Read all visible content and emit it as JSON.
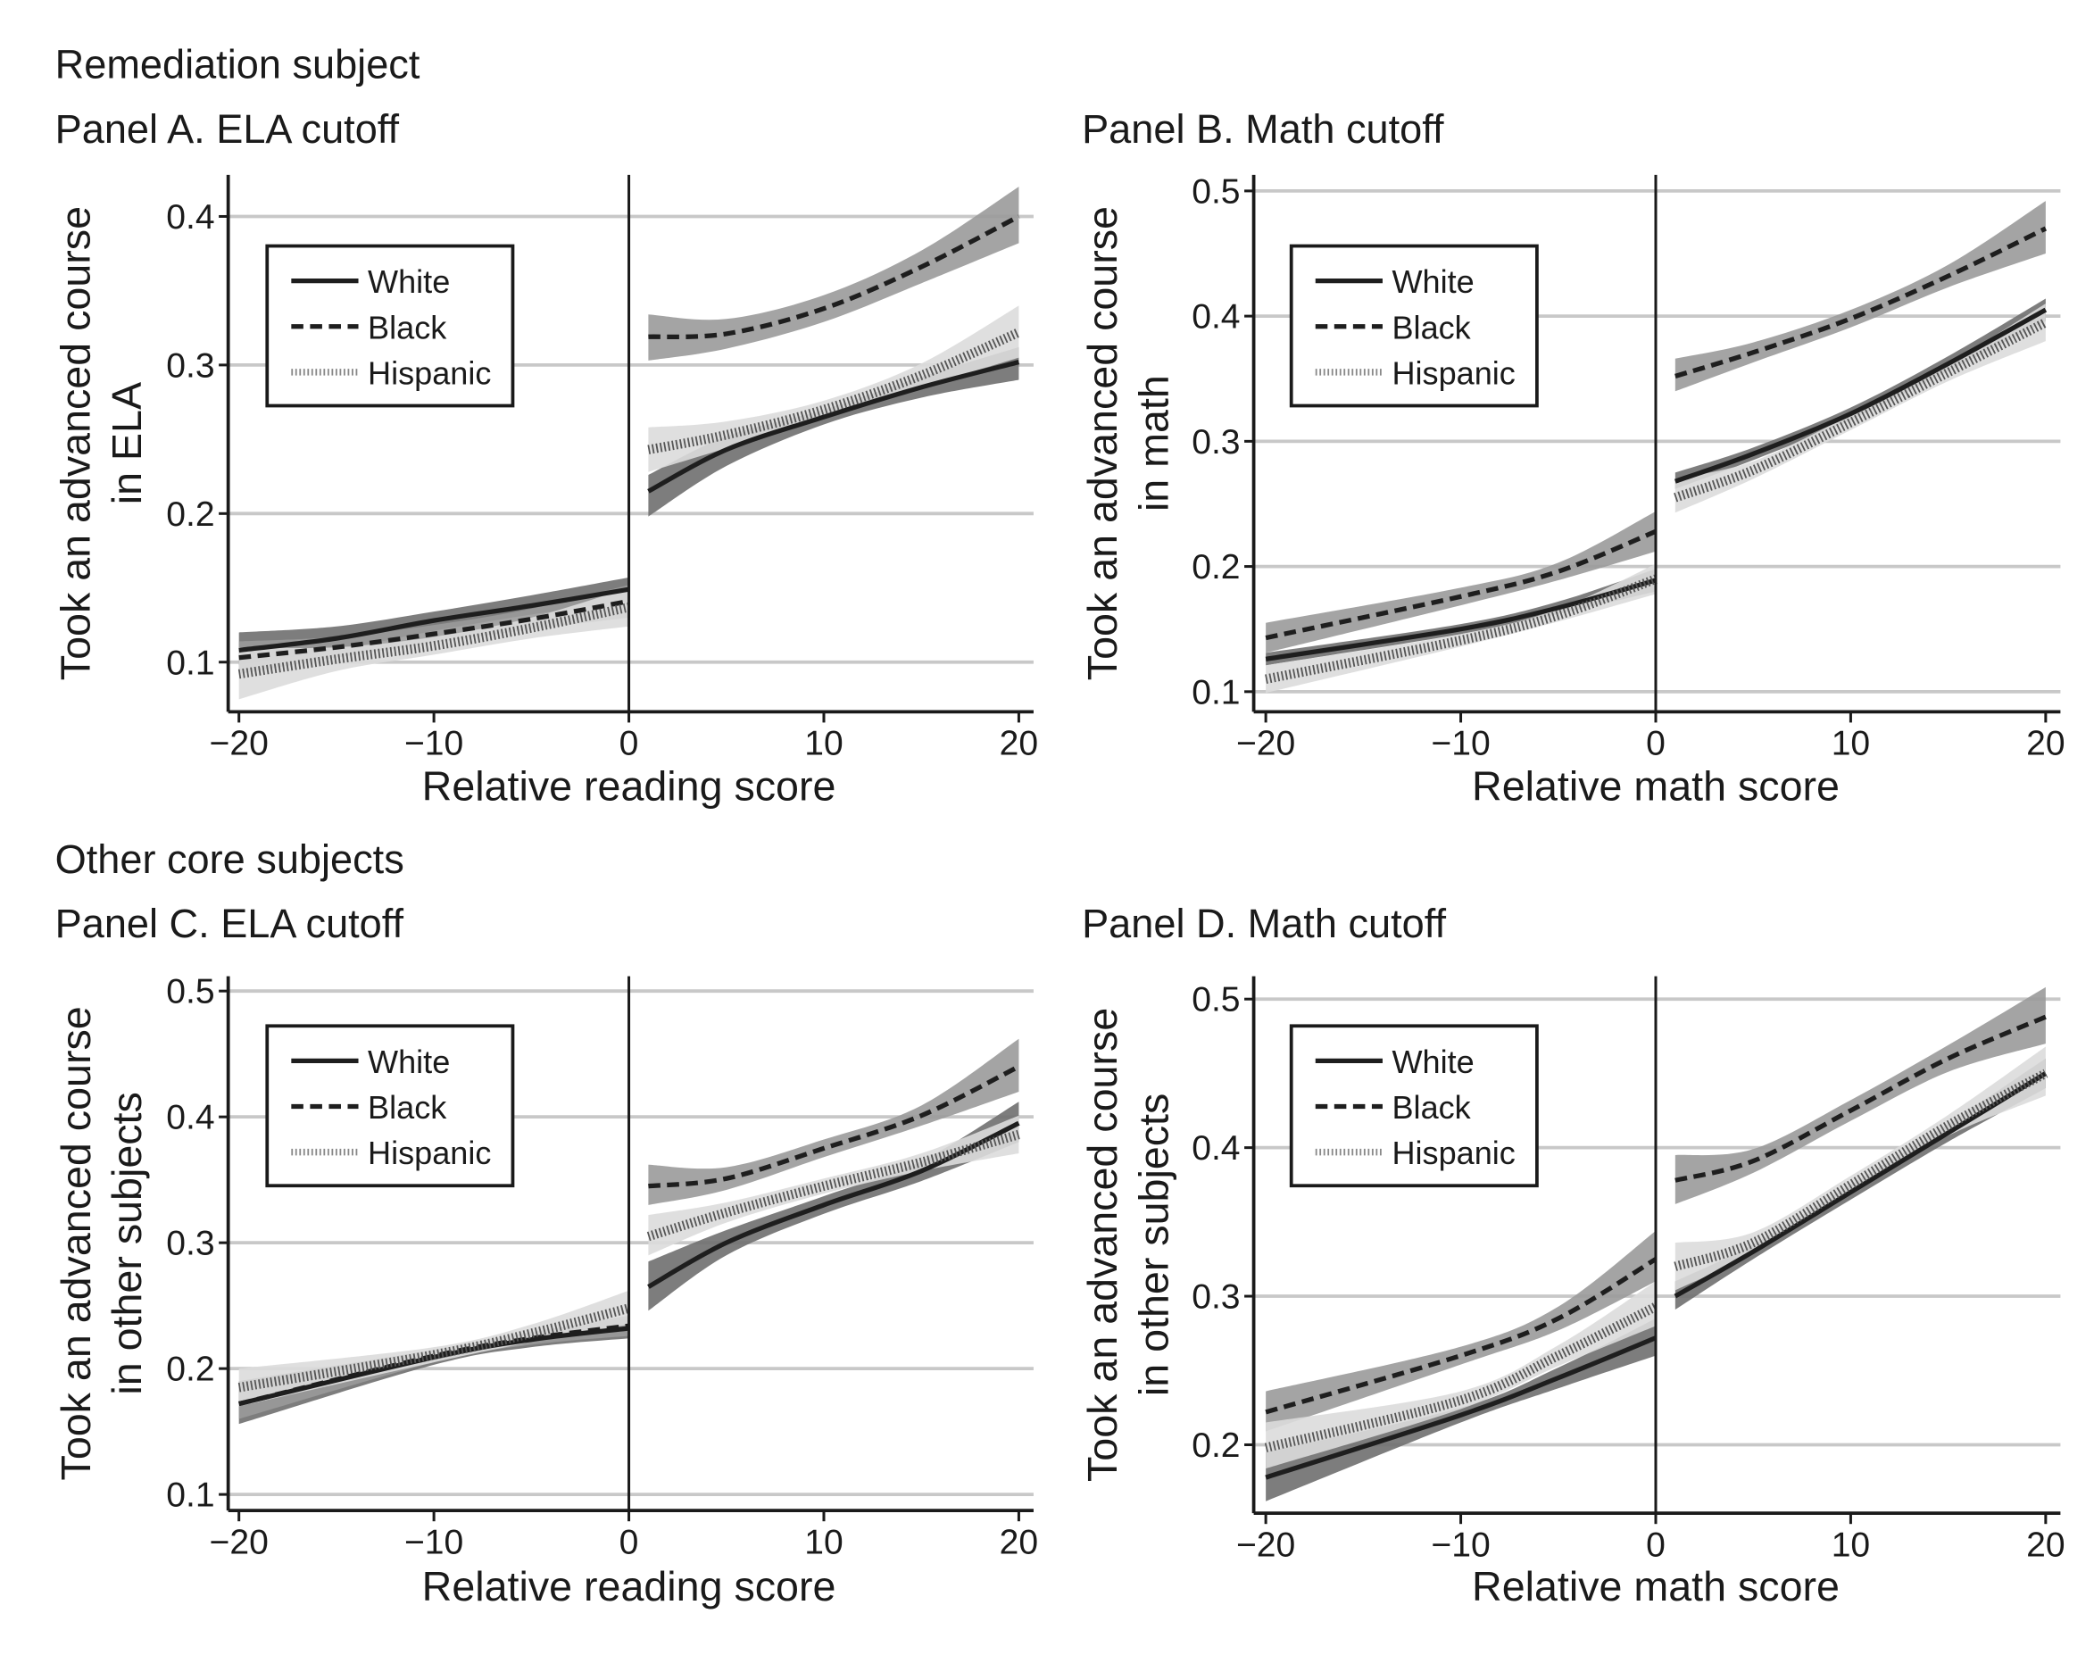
{
  "chart_data": [
    {
      "type": "line",
      "group_title": "Remediation subject",
      "title": "Panel A. ELA cutoff",
      "xlabel": "Relative reading score",
      "ylabel": [
        "Took an advanced course",
        "in ELA"
      ],
      "xlim": [
        -20,
        20
      ],
      "ylim": [
        0.07,
        0.43
      ],
      "xticks": [
        -20,
        -10,
        0,
        10,
        20
      ],
      "xtick_labels": [
        "−20",
        "−10",
        "0",
        "10",
        "20"
      ],
      "yticks": [
        0.1,
        0.2,
        0.3,
        0.4
      ],
      "ytick_labels": [
        "0.1",
        "0.2",
        "0.3",
        "0.4"
      ],
      "cutoff": 0,
      "grid": "horizontal",
      "legend_position": "top-left",
      "series": [
        {
          "name": "White",
          "left": [
            [
              -20,
              0.108,
              0.098,
              0.12
            ],
            [
              -15,
              0.116,
              0.108,
              0.124
            ],
            [
              -10,
              0.128,
              0.121,
              0.134
            ],
            [
              -5,
              0.138,
              0.132,
              0.145
            ],
            [
              0,
              0.149,
              0.141,
              0.157
            ]
          ],
          "right": [
            [
              1,
              0.215,
              0.198,
              0.226
            ],
            [
              5,
              0.243,
              0.232,
              0.252
            ],
            [
              10,
              0.265,
              0.26,
              0.27
            ],
            [
              15,
              0.285,
              0.278,
              0.292
            ],
            [
              20,
              0.302,
              0.29,
              0.312
            ]
          ]
        },
        {
          "name": "Black",
          "left": [
            [
              -20,
              0.103,
              0.092,
              0.114
            ],
            [
              -15,
              0.11,
              0.103,
              0.117
            ],
            [
              -10,
              0.119,
              0.113,
              0.125
            ],
            [
              -5,
              0.129,
              0.122,
              0.136
            ],
            [
              0,
              0.141,
              0.13,
              0.152
            ]
          ],
          "right": [
            [
              1,
              0.319,
              0.303,
              0.334
            ],
            [
              5,
              0.321,
              0.311,
              0.331
            ],
            [
              10,
              0.338,
              0.329,
              0.347
            ],
            [
              15,
              0.366,
              0.355,
              0.377
            ],
            [
              20,
              0.4,
              0.382,
              0.42
            ]
          ]
        },
        {
          "name": "Hispanic",
          "left": [
            [
              -20,
              0.092,
              0.075,
              0.11
            ],
            [
              -15,
              0.102,
              0.094,
              0.11
            ],
            [
              -10,
              0.111,
              0.105,
              0.117
            ],
            [
              -5,
              0.123,
              0.116,
              0.13
            ],
            [
              0,
              0.137,
              0.124,
              0.15
            ]
          ],
          "right": [
            [
              1,
              0.243,
              0.228,
              0.258
            ],
            [
              5,
              0.253,
              0.244,
              0.262
            ],
            [
              10,
              0.27,
              0.264,
              0.276
            ],
            [
              15,
              0.293,
              0.285,
              0.301
            ],
            [
              20,
              0.322,
              0.305,
              0.34
            ]
          ]
        }
      ]
    },
    {
      "type": "line",
      "title": "Panel B. Math cutoff",
      "xlabel": "Relative math score",
      "ylabel": [
        "Took an advanced course",
        "in math"
      ],
      "xlim": [
        -20,
        20
      ],
      "ylim": [
        0.09,
        0.51
      ],
      "xticks": [
        -20,
        -10,
        0,
        10,
        20
      ],
      "xtick_labels": [
        "−20",
        "−10",
        "0",
        "10",
        "20"
      ],
      "yticks": [
        0.1,
        0.2,
        0.3,
        0.4,
        0.5
      ],
      "ytick_labels": [
        "0.1",
        "0.2",
        "0.3",
        "0.4",
        "0.5"
      ],
      "cutoff": 0,
      "grid": "horizontal",
      "legend_position": "top-left",
      "series": [
        {
          "name": "White",
          "left": [
            [
              -20,
              0.126,
              0.121,
              0.131
            ],
            [
              -10,
              0.15,
              0.146,
              0.154
            ],
            [
              -5,
              0.167,
              0.162,
              0.172
            ],
            [
              0,
              0.189,
              0.18,
              0.198
            ]
          ],
          "right": [
            [
              1,
              0.268,
              0.262,
              0.275
            ],
            [
              5,
              0.29,
              0.285,
              0.295
            ],
            [
              10,
              0.322,
              0.317,
              0.327
            ],
            [
              15,
              0.362,
              0.356,
              0.368
            ],
            [
              20,
              0.405,
              0.396,
              0.414
            ]
          ]
        },
        {
          "name": "Black",
          "left": [
            [
              -20,
              0.143,
              0.131,
              0.155
            ],
            [
              -10,
              0.176,
              0.169,
              0.183
            ],
            [
              -5,
              0.196,
              0.189,
              0.203
            ],
            [
              0,
              0.228,
              0.212,
              0.244
            ]
          ],
          "right": [
            [
              1,
              0.352,
              0.34,
              0.366
            ],
            [
              5,
              0.371,
              0.363,
              0.379
            ],
            [
              10,
              0.398,
              0.391,
              0.405
            ],
            [
              15,
              0.432,
              0.423,
              0.441
            ],
            [
              20,
              0.47,
              0.45,
              0.492
            ]
          ]
        },
        {
          "name": "Hispanic",
          "left": [
            [
              -20,
              0.11,
              0.099,
              0.121
            ],
            [
              -10,
              0.141,
              0.136,
              0.146
            ],
            [
              -5,
              0.161,
              0.156,
              0.166
            ],
            [
              0,
              0.19,
              0.178,
              0.202
            ]
          ],
          "right": [
            [
              1,
              0.255,
              0.243,
              0.27
            ],
            [
              5,
              0.277,
              0.27,
              0.284
            ],
            [
              10,
              0.315,
              0.309,
              0.321
            ],
            [
              15,
              0.355,
              0.348,
              0.362
            ],
            [
              20,
              0.395,
              0.38,
              0.41
            ]
          ]
        }
      ]
    },
    {
      "type": "line",
      "group_title": "Other core subjects",
      "title": "Panel C. ELA cutoff",
      "xlabel": "Relative reading score",
      "ylabel": [
        "Took an advanced course",
        "in other subjects"
      ],
      "xlim": [
        -20,
        20
      ],
      "ylim": [
        0.09,
        0.51
      ],
      "xticks": [
        -20,
        -10,
        0,
        10,
        20
      ],
      "xtick_labels": [
        "−20",
        "−10",
        "0",
        "10",
        "20"
      ],
      "yticks": [
        0.1,
        0.2,
        0.3,
        0.4,
        0.5
      ],
      "ytick_labels": [
        "0.1",
        "0.2",
        "0.3",
        "0.4",
        "0.5"
      ],
      "cutoff": 0,
      "grid": "horizontal",
      "legend_position": "top-left",
      "series": [
        {
          "name": "White",
          "left": [
            [
              -20,
              0.172,
              0.156,
              0.19
            ],
            [
              -10,
              0.209,
              0.203,
              0.215
            ],
            [
              -5,
              0.223,
              0.217,
              0.229
            ],
            [
              0,
              0.232,
              0.224,
              0.24
            ]
          ],
          "right": [
            [
              1,
              0.265,
              0.246,
              0.285
            ],
            [
              5,
              0.3,
              0.29,
              0.31
            ],
            [
              10,
              0.33,
              0.323,
              0.337
            ],
            [
              15,
              0.357,
              0.349,
              0.365
            ],
            [
              20,
              0.395,
              0.38,
              0.412
            ]
          ]
        },
        {
          "name": "Black",
          "left": [
            [
              -20,
              0.172,
              0.16,
              0.184
            ],
            [
              -10,
              0.21,
              0.205,
              0.215
            ],
            [
              -5,
              0.224,
              0.219,
              0.229
            ],
            [
              0,
              0.234,
              0.226,
              0.242
            ]
          ],
          "right": [
            [
              1,
              0.345,
              0.33,
              0.362
            ],
            [
              5,
              0.351,
              0.342,
              0.36
            ],
            [
              10,
              0.375,
              0.368,
              0.382
            ],
            [
              15,
              0.401,
              0.393,
              0.409
            ],
            [
              20,
              0.44,
              0.42,
              0.462
            ]
          ]
        },
        {
          "name": "Hispanic",
          "left": [
            [
              -20,
              0.185,
              0.17,
              0.2
            ],
            [
              -10,
              0.211,
              0.205,
              0.217
            ],
            [
              -5,
              0.228,
              0.221,
              0.235
            ],
            [
              0,
              0.248,
              0.235,
              0.262
            ]
          ],
          "right": [
            [
              1,
              0.305,
              0.29,
              0.322
            ],
            [
              5,
              0.324,
              0.316,
              0.332
            ],
            [
              10,
              0.345,
              0.339,
              0.351
            ],
            [
              15,
              0.364,
              0.357,
              0.371
            ],
            [
              20,
              0.386,
              0.371,
              0.401
            ]
          ]
        }
      ]
    },
    {
      "type": "line",
      "title": "Panel D. Math cutoff",
      "xlabel": "Relative math score",
      "ylabel": [
        "Took an advanced course",
        "in other subjects"
      ],
      "xlim": [
        -20,
        20
      ],
      "ylim": [
        0.155,
        0.51
      ],
      "xticks": [
        -20,
        -10,
        0,
        10,
        20
      ],
      "xtick_labels": [
        "−20",
        "−10",
        "0",
        "10",
        "20"
      ],
      "yticks": [
        0.2,
        0.3,
        0.4,
        0.5
      ],
      "ytick_labels": [
        "0.2",
        "0.3",
        "0.4",
        "0.5"
      ],
      "cutoff": 0,
      "grid": "horizontal",
      "legend_position": "top-left",
      "series": [
        {
          "name": "White",
          "left": [
            [
              -20,
              0.178,
              0.162,
              0.195
            ],
            [
              -10,
              0.22,
              0.215,
              0.225
            ],
            [
              -5,
              0.245,
              0.238,
              0.252
            ],
            [
              0,
              0.272,
              0.26,
              0.285
            ]
          ],
          "right": [
            [
              1,
              0.3,
              0.291,
              0.31
            ],
            [
              5,
              0.33,
              0.325,
              0.335
            ],
            [
              10,
              0.37,
              0.365,
              0.375
            ],
            [
              15,
              0.41,
              0.404,
              0.416
            ],
            [
              20,
              0.45,
              0.44,
              0.46
            ]
          ]
        },
        {
          "name": "Black",
          "left": [
            [
              -20,
              0.222,
              0.209,
              0.236
            ],
            [
              -10,
              0.26,
              0.254,
              0.266
            ],
            [
              -5,
              0.285,
              0.277,
              0.293
            ],
            [
              0,
              0.325,
              0.31,
              0.344
            ]
          ],
          "right": [
            [
              1,
              0.378,
              0.362,
              0.395
            ],
            [
              5,
              0.391,
              0.383,
              0.399
            ],
            [
              10,
              0.425,
              0.418,
              0.432
            ],
            [
              15,
              0.46,
              0.451,
              0.469
            ],
            [
              20,
              0.488,
              0.47,
              0.508
            ]
          ]
        },
        {
          "name": "Hispanic",
          "left": [
            [
              -20,
              0.198,
              0.184,
              0.215
            ],
            [
              -10,
              0.23,
              0.224,
              0.236
            ],
            [
              -5,
              0.26,
              0.253,
              0.267
            ],
            [
              0,
              0.293,
              0.28,
              0.31
            ]
          ],
          "right": [
            [
              1,
              0.32,
              0.304,
              0.336
            ],
            [
              5,
              0.336,
              0.329,
              0.343
            ],
            [
              10,
              0.375,
              0.369,
              0.381
            ],
            [
              15,
              0.415,
              0.408,
              0.422
            ],
            [
              20,
              0.45,
              0.435,
              0.468
            ]
          ]
        }
      ]
    }
  ],
  "styles": {
    "White": {
      "band": "#6f6f6f",
      "line": "#1e1e1e",
      "dash": "solid"
    },
    "Black": {
      "band": "#9a9a9a",
      "line": "#1e1e1e",
      "dash": "dashed"
    },
    "Hispanic": {
      "band": "#dcdcdc",
      "line": "#555555",
      "dash": "dotted"
    },
    "grid": "#c8c8c8"
  }
}
